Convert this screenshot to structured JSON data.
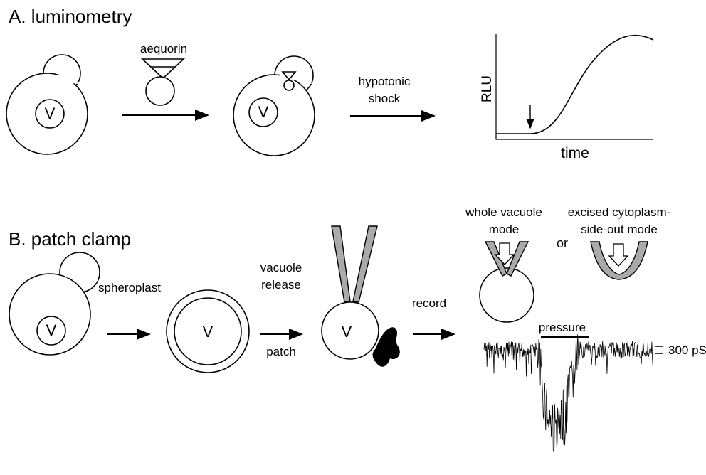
{
  "panel_a": {
    "title": "A. luminometry",
    "aequorin": "aequorin",
    "shock": [
      "hypotonic",
      "shock"
    ],
    "y_axis": "RLU",
    "x_axis": "time",
    "cells": [
      {
        "label": "V"
      },
      {
        "label": "V"
      }
    ]
  },
  "panel_b": {
    "title": "B. patch clamp",
    "spheroplast": "spheroplast",
    "release": [
      "vacuole",
      "release"
    ],
    "patch": "patch",
    "record": "record",
    "whole_mode": [
      "whole vacuole",
      "mode"
    ],
    "or": "or",
    "excised_mode": [
      "excised cytoplasm-",
      "side-out mode"
    ],
    "pressure": "pressure",
    "scale": "300 pS",
    "cells": [
      {
        "label": "V"
      },
      {
        "label": "V"
      },
      {
        "label": "V"
      }
    ]
  }
}
